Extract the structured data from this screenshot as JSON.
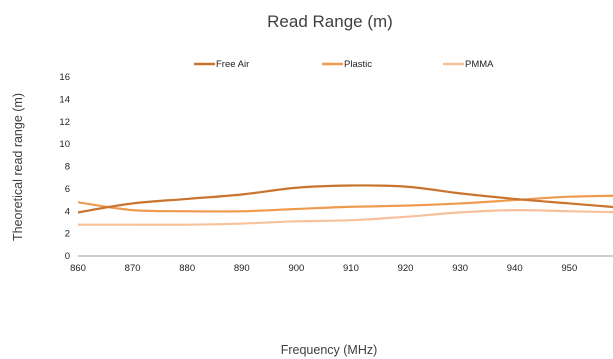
{
  "chart_data": {
    "type": "line",
    "title": "Read Range (m)",
    "xlabel": "Frequency (MHz)",
    "ylabel": "Theoretical read range (m)",
    "x": [
      860,
      870,
      880,
      890,
      900,
      910,
      920,
      930,
      940,
      950,
      960
    ],
    "x_ticks": [
      "860",
      "870",
      "880",
      "890",
      "900",
      "910",
      "920",
      "930",
      "940",
      "950"
    ],
    "y_ticks": [
      "0",
      "2",
      "4",
      "6",
      "8",
      "10",
      "12",
      "14",
      "16"
    ],
    "xlim": [
      860,
      958
    ],
    "ylim": [
      0,
      16
    ],
    "grid": false,
    "legend_position": "top",
    "series": [
      {
        "name": "Free Air",
        "color": "#c8742f",
        "values": [
          3.9,
          4.7,
          5.1,
          5.5,
          6.1,
          6.3,
          6.2,
          5.6,
          5.1,
          4.7,
          4.3
        ]
      },
      {
        "name": "Plastic",
        "color": "#ef9b4f",
        "values": [
          4.8,
          4.1,
          4.0,
          4.0,
          4.2,
          4.4,
          4.5,
          4.7,
          5.0,
          5.3,
          5.4
        ]
      },
      {
        "name": "PMMA",
        "color": "#f6c29c",
        "values": [
          2.8,
          2.8,
          2.8,
          2.9,
          3.1,
          3.2,
          3.5,
          3.9,
          4.1,
          4.0,
          3.9
        ]
      }
    ]
  }
}
